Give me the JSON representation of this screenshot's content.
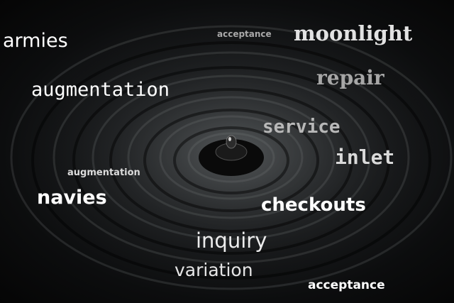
{
  "words": {
    "armies": "armies",
    "acceptance_small": "acceptance",
    "moonlight": "moonlight",
    "repair": "repair",
    "augmentation_big": "augmentation",
    "service": "service",
    "inlet": "inlet",
    "augmentation_small": "augmentation",
    "navies": "navies",
    "checkouts": "checkouts",
    "inquiry": "inquiry",
    "variation": "variation",
    "acceptance_bottom": "acceptance"
  }
}
